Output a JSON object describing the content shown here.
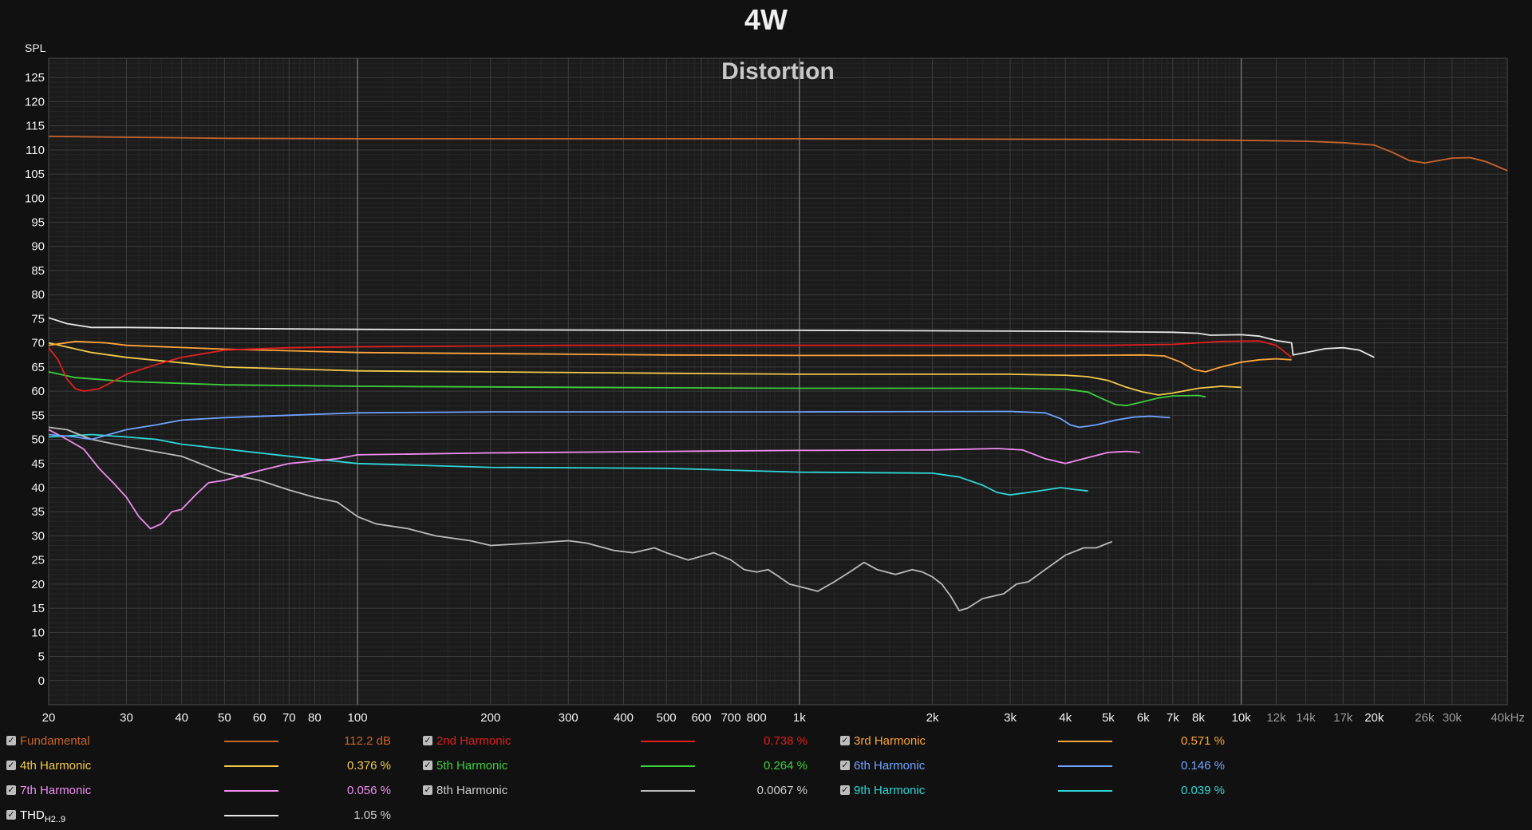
{
  "title": "4W",
  "colors": {
    "background": "#111111",
    "plot_background": "#1b1b1b",
    "grid_major": "#3c3c3c",
    "grid_minor": "#262626",
    "grid_decade": "#707070",
    "axis_text": "#f2f2f2"
  },
  "legend": [
    {
      "name": "Fundamental",
      "value": "112.2 dB",
      "color": "#c8652b",
      "checked": true
    },
    {
      "name": "2nd Harmonic",
      "value": "0.738 %",
      "color": "#e01f1f",
      "checked": true
    },
    {
      "name": "3rd Harmonic",
      "value": "0.571 %",
      "color": "#ffa53a",
      "checked": true
    },
    {
      "name": "4th Harmonic",
      "value": "0.376 %",
      "color": "#f2c94a",
      "checked": true
    },
    {
      "name": "5th Harmonic",
      "value": "0.264 %",
      "color": "#3ccf3c",
      "checked": true
    },
    {
      "name": "6th Harmonic",
      "value": "0.146 %",
      "color": "#6ea3ff",
      "checked": true
    },
    {
      "name": "7th Harmonic",
      "value": "0.056 %",
      "color": "#f08cf0",
      "checked": true
    },
    {
      "name": "8th Harmonic",
      "value": "0.0067 %",
      "color": "#bbbbbb",
      "checked": true
    },
    {
      "name": "9th Harmonic",
      "value": "0.039 %",
      "color": "#2fd6d6",
      "checked": true
    },
    {
      "name": "THD",
      "sub": "H2..9",
      "value": "1.05 %",
      "color": "#e6e6e6",
      "checked": true
    }
  ],
  "chart_data": {
    "type": "line",
    "title": "Distortion",
    "ylabel": "SPL",
    "xscale": "log",
    "xlim": [
      20,
      40000
    ],
    "ylim": [
      -5,
      129
    ],
    "grid": true,
    "legend_position": "bottom",
    "x_major_ticks": [
      {
        "v": 20,
        "l": "20"
      },
      {
        "v": 30,
        "l": "30"
      },
      {
        "v": 40,
        "l": "40"
      },
      {
        "v": 50,
        "l": "50"
      },
      {
        "v": 60,
        "l": "60"
      },
      {
        "v": 70,
        "l": "70"
      },
      {
        "v": 80,
        "l": "80"
      },
      {
        "v": 100,
        "l": "100"
      },
      {
        "v": 200,
        "l": "200"
      },
      {
        "v": 300,
        "l": "300"
      },
      {
        "v": 400,
        "l": "400"
      },
      {
        "v": 500,
        "l": "500"
      },
      {
        "v": 600,
        "l": "600"
      },
      {
        "v": 700,
        "l": "700"
      },
      {
        "v": 800,
        "l": "800"
      },
      {
        "v": 1000,
        "l": "1k"
      },
      {
        "v": 2000,
        "l": "2k"
      },
      {
        "v": 3000,
        "l": "3k"
      },
      {
        "v": 4000,
        "l": "4k"
      },
      {
        "v": 5000,
        "l": "5k"
      },
      {
        "v": 6000,
        "l": "6k"
      },
      {
        "v": 7000,
        "l": "7k"
      },
      {
        "v": 8000,
        "l": "8k"
      },
      {
        "v": 10000,
        "l": "10k"
      },
      {
        "v": 12000,
        "l": "12k"
      },
      {
        "v": 14000,
        "l": "14k"
      },
      {
        "v": 17000,
        "l": "17k"
      },
      {
        "v": 20000,
        "l": "20k"
      },
      {
        "v": 26000,
        "l": "26k"
      },
      {
        "v": 30000,
        "l": "30k"
      },
      {
        "v": 40000,
        "l": "40kHz"
      }
    ],
    "y_ticks": [
      0,
      5,
      10,
      15,
      20,
      25,
      30,
      35,
      40,
      45,
      50,
      55,
      60,
      65,
      70,
      75,
      80,
      85,
      90,
      95,
      100,
      105,
      110,
      115,
      120,
      125
    ],
    "series": [
      {
        "name": "Fundamental",
        "color": "#c8652b",
        "points": [
          [
            20,
            112.8
          ],
          [
            50,
            112.4
          ],
          [
            100,
            112.3
          ],
          [
            1000,
            112.3
          ],
          [
            5000,
            112.2
          ],
          [
            10000,
            112.0
          ],
          [
            14000,
            111.8
          ],
          [
            17000,
            111.5
          ],
          [
            20000,
            111.0
          ],
          [
            22000,
            109.5
          ],
          [
            24000,
            107.8
          ],
          [
            26000,
            107.3
          ],
          [
            28000,
            107.8
          ],
          [
            30000,
            108.3
          ],
          [
            33000,
            108.4
          ],
          [
            36000,
            107.5
          ],
          [
            40000,
            105.7
          ]
        ]
      },
      {
        "name": "2nd Harmonic",
        "color": "#e01f1f",
        "points": [
          [
            20,
            69
          ],
          [
            21,
            66.5
          ],
          [
            22,
            62.5
          ],
          [
            23,
            60.5
          ],
          [
            24,
            60
          ],
          [
            26,
            60.5
          ],
          [
            28,
            62
          ],
          [
            30,
            63.5
          ],
          [
            35,
            65.5
          ],
          [
            40,
            67
          ],
          [
            50,
            68.5
          ],
          [
            70,
            69
          ],
          [
            100,
            69.2
          ],
          [
            300,
            69.5
          ],
          [
            1000,
            69.5
          ],
          [
            3000,
            69.5
          ],
          [
            5000,
            69.5
          ],
          [
            7000,
            69.7
          ],
          [
            9000,
            70.3
          ],
          [
            11000,
            70.4
          ],
          [
            12000,
            69.5
          ],
          [
            13000,
            67
          ]
        ]
      },
      {
        "name": "3rd Harmonic",
        "color": "#ffa53a",
        "points": [
          [
            20,
            69.5
          ],
          [
            23,
            70.3
          ],
          [
            27,
            70.0
          ],
          [
            30,
            69.5
          ],
          [
            50,
            68.7
          ],
          [
            100,
            68.0
          ],
          [
            500,
            67.5
          ],
          [
            1000,
            67.4
          ],
          [
            4000,
            67.4
          ],
          [
            6000,
            67.5
          ],
          [
            6700,
            67.3
          ],
          [
            7300,
            66.0
          ],
          [
            7800,
            64.5
          ],
          [
            8300,
            64.0
          ],
          [
            9000,
            65.0
          ],
          [
            10000,
            66.0
          ],
          [
            11000,
            66.5
          ],
          [
            12000,
            66.7
          ],
          [
            13000,
            66.5
          ]
        ]
      },
      {
        "name": "4th Harmonic",
        "color": "#f2c94a",
        "points": [
          [
            20,
            70
          ],
          [
            25,
            68.0
          ],
          [
            30,
            67.0
          ],
          [
            50,
            65.0
          ],
          [
            100,
            64.2
          ],
          [
            500,
            63.7
          ],
          [
            1000,
            63.5
          ],
          [
            3000,
            63.5
          ],
          [
            4000,
            63.3
          ],
          [
            4500,
            63.0
          ],
          [
            5000,
            62.2
          ],
          [
            5500,
            60.8
          ],
          [
            6000,
            59.8
          ],
          [
            6500,
            59.2
          ],
          [
            7000,
            59.6
          ],
          [
            8000,
            60.6
          ],
          [
            9000,
            61.0
          ],
          [
            10000,
            60.8
          ]
        ]
      },
      {
        "name": "5th Harmonic",
        "color": "#3ccf3c",
        "points": [
          [
            20,
            64
          ],
          [
            23,
            62.8
          ],
          [
            30,
            62.0
          ],
          [
            50,
            61.3
          ],
          [
            100,
            61.0
          ],
          [
            500,
            60.7
          ],
          [
            1000,
            60.6
          ],
          [
            3000,
            60.6
          ],
          [
            4000,
            60.4
          ],
          [
            4500,
            59.8
          ],
          [
            4800,
            58.6
          ],
          [
            5200,
            57.2
          ],
          [
            5500,
            57.0
          ],
          [
            6000,
            57.8
          ],
          [
            6500,
            58.6
          ],
          [
            7000,
            59.0
          ],
          [
            8000,
            59.1
          ],
          [
            8300,
            58.8
          ]
        ]
      },
      {
        "name": "6th Harmonic",
        "color": "#6ea3ff",
        "points": [
          [
            20,
            51
          ],
          [
            23,
            50.5
          ],
          [
            25,
            50.0
          ],
          [
            30,
            52.0
          ],
          [
            35,
            53.0
          ],
          [
            40,
            54.0
          ],
          [
            50,
            54.5
          ],
          [
            70,
            55.0
          ],
          [
            100,
            55.5
          ],
          [
            200,
            55.7
          ],
          [
            500,
            55.7
          ],
          [
            1000,
            55.7
          ],
          [
            3000,
            55.8
          ],
          [
            3600,
            55.5
          ],
          [
            3900,
            54.3
          ],
          [
            4100,
            53.0
          ],
          [
            4300,
            52.5
          ],
          [
            4700,
            53.0
          ],
          [
            5200,
            54.0
          ],
          [
            5700,
            54.6
          ],
          [
            6200,
            54.8
          ],
          [
            6900,
            54.5
          ]
        ]
      },
      {
        "name": "7th Harmonic",
        "color": "#f08cf0",
        "points": [
          [
            20,
            52
          ],
          [
            22,
            50.0
          ],
          [
            24,
            48.0
          ],
          [
            26,
            44.0
          ],
          [
            28,
            41.0
          ],
          [
            30,
            38.0
          ],
          [
            32,
            34.0
          ],
          [
            34,
            31.5
          ],
          [
            36,
            32.5
          ],
          [
            38,
            35.0
          ],
          [
            40,
            35.5
          ],
          [
            43,
            38.5
          ],
          [
            46,
            41.0
          ],
          [
            50,
            41.5
          ],
          [
            60,
            43.5
          ],
          [
            70,
            45.0
          ],
          [
            80,
            45.5
          ],
          [
            90,
            46.0
          ],
          [
            100,
            46.8
          ],
          [
            200,
            47.2
          ],
          [
            500,
            47.5
          ],
          [
            1000,
            47.7
          ],
          [
            2000,
            47.8
          ],
          [
            2800,
            48.1
          ],
          [
            3200,
            47.8
          ],
          [
            3600,
            46.0
          ],
          [
            4000,
            45.0
          ],
          [
            4400,
            46.0
          ],
          [
            5000,
            47.3
          ],
          [
            5500,
            47.5
          ],
          [
            5900,
            47.3
          ]
        ]
      },
      {
        "name": "8th Harmonic",
        "color": "#bbbbbb",
        "points": [
          [
            20,
            52.5
          ],
          [
            22,
            52.0
          ],
          [
            25,
            50.0
          ],
          [
            30,
            48.5
          ],
          [
            40,
            46.5
          ],
          [
            50,
            43.0
          ],
          [
            60,
            41.5
          ],
          [
            70,
            39.5
          ],
          [
            80,
            38.0
          ],
          [
            90,
            37.0
          ],
          [
            100,
            34.0
          ],
          [
            110,
            32.5
          ],
          [
            130,
            31.5
          ],
          [
            150,
            30.0
          ],
          [
            180,
            29.0
          ],
          [
            200,
            28.0
          ],
          [
            250,
            28.5
          ],
          [
            300,
            29.0
          ],
          [
            330,
            28.5
          ],
          [
            380,
            27.0
          ],
          [
            420,
            26.5
          ],
          [
            470,
            27.5
          ],
          [
            500,
            26.5
          ],
          [
            560,
            25.0
          ],
          [
            640,
            26.5
          ],
          [
            700,
            25.0
          ],
          [
            750,
            23.0
          ],
          [
            800,
            22.5
          ],
          [
            850,
            23.0
          ],
          [
            900,
            21.5
          ],
          [
            950,
            20.0
          ],
          [
            1000,
            19.5
          ],
          [
            1100,
            18.5
          ],
          [
            1200,
            20.5
          ],
          [
            1300,
            22.5
          ],
          [
            1400,
            24.5
          ],
          [
            1500,
            23.0
          ],
          [
            1650,
            22.0
          ],
          [
            1800,
            23.0
          ],
          [
            1900,
            22.5
          ],
          [
            2000,
            21.5
          ],
          [
            2100,
            20.0
          ],
          [
            2200,
            17.5
          ],
          [
            2300,
            14.5
          ],
          [
            2400,
            15.0
          ],
          [
            2600,
            17.0
          ],
          [
            2900,
            18.0
          ],
          [
            3100,
            20.0
          ],
          [
            3300,
            20.5
          ],
          [
            3600,
            23.0
          ],
          [
            4000,
            26.0
          ],
          [
            4400,
            27.5
          ],
          [
            4700,
            27.5
          ],
          [
            5000,
            28.5
          ],
          [
            5100,
            28.8
          ]
        ]
      },
      {
        "name": "9th Harmonic",
        "color": "#2fd6d6",
        "points": [
          [
            20,
            50.5
          ],
          [
            25,
            51.0
          ],
          [
            30,
            50.5
          ],
          [
            35,
            50.0
          ],
          [
            40,
            49.0
          ],
          [
            50,
            48.0
          ],
          [
            70,
            46.5
          ],
          [
            100,
            45.0
          ],
          [
            200,
            44.2
          ],
          [
            500,
            44.0
          ],
          [
            1000,
            43.2
          ],
          [
            2000,
            43.0
          ],
          [
            2300,
            42.2
          ],
          [
            2600,
            40.5
          ],
          [
            2800,
            39.0
          ],
          [
            3000,
            38.5
          ],
          [
            3300,
            39.0
          ],
          [
            3600,
            39.5
          ],
          [
            3900,
            40.0
          ],
          [
            4200,
            39.6
          ],
          [
            4500,
            39.3
          ]
        ]
      },
      {
        "name": "THD",
        "color": "#e6e6e6",
        "points": [
          [
            20,
            75.2
          ],
          [
            22,
            74.0
          ],
          [
            25,
            73.2
          ],
          [
            30,
            73.2
          ],
          [
            50,
            73.0
          ],
          [
            100,
            72.8
          ],
          [
            500,
            72.6
          ],
          [
            1000,
            72.6
          ],
          [
            4000,
            72.4
          ],
          [
            7000,
            72.2
          ],
          [
            8000,
            72.0
          ],
          [
            8500,
            71.6
          ],
          [
            10000,
            71.7
          ],
          [
            11000,
            71.4
          ],
          [
            12000,
            70.5
          ],
          [
            13000,
            70.0
          ],
          [
            13100,
            67.5
          ],
          [
            14000,
            68.0
          ],
          [
            15500,
            68.8
          ],
          [
            17000,
            69.0
          ],
          [
            18500,
            68.5
          ],
          [
            20000,
            67.0
          ]
        ]
      }
    ]
  }
}
